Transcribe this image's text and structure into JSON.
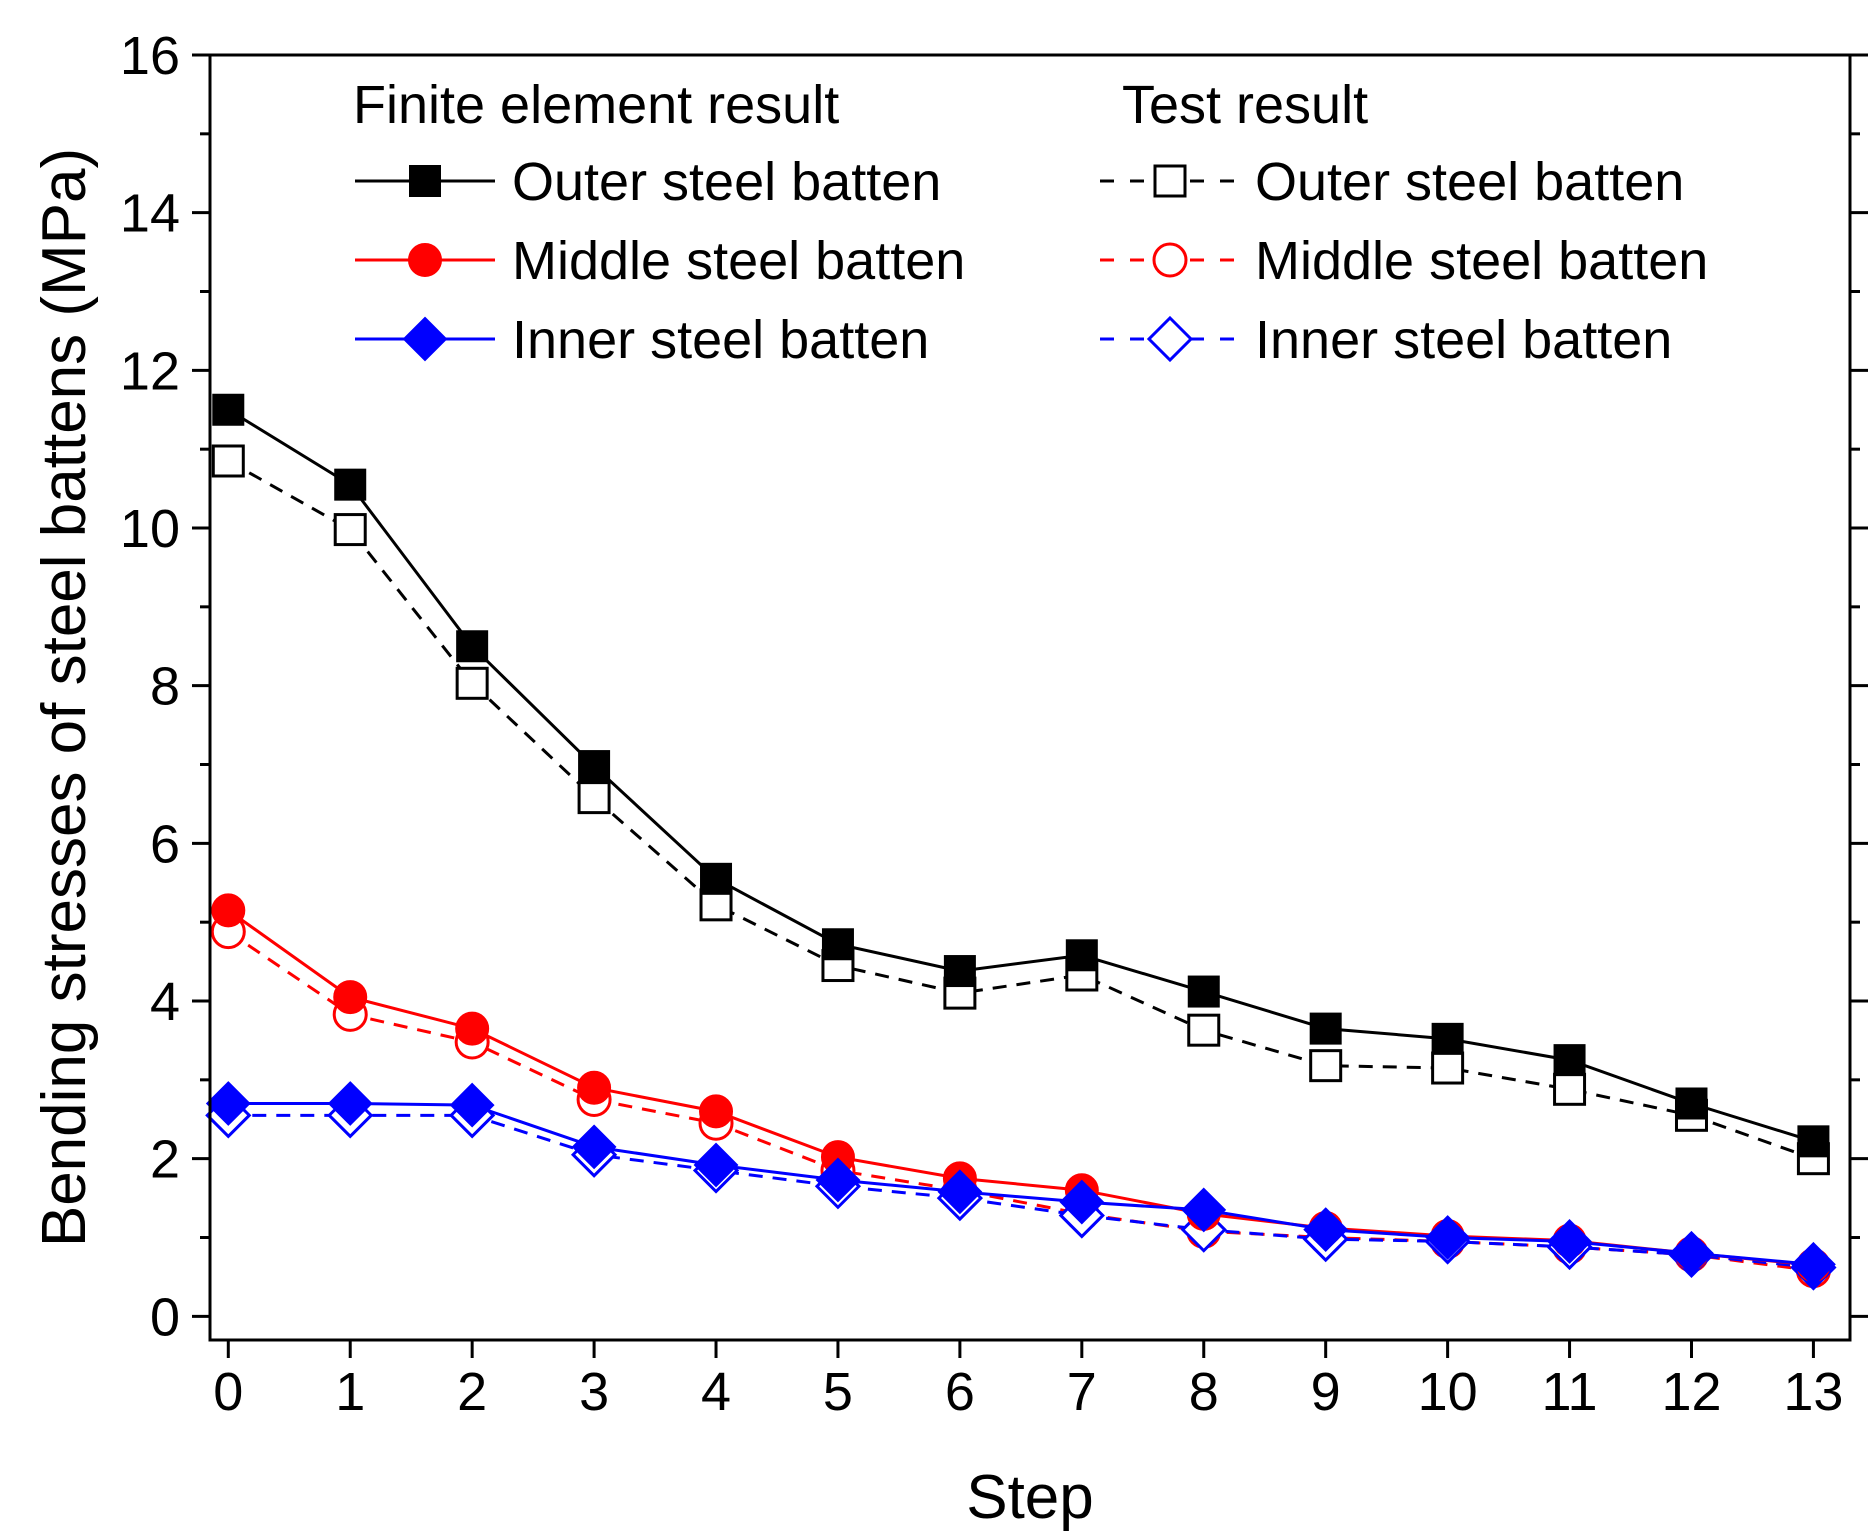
{
  "chart_data": {
    "type": "line",
    "title": "",
    "xlabel": "Step",
    "ylabel": "Bending stresses of steel battens (MPa)",
    "xlim": [
      -0.15,
      13.3
    ],
    "ylim": [
      -0.3,
      16
    ],
    "x_ticks": [
      0,
      1,
      2,
      3,
      4,
      5,
      6,
      7,
      8,
      9,
      10,
      11,
      12,
      13
    ],
    "y_ticks": [
      0,
      2,
      4,
      6,
      8,
      10,
      12,
      14,
      16
    ],
    "grid": false,
    "legend": {
      "position": "top",
      "group_titles": [
        "Finite element result",
        "Test result"
      ]
    },
    "x": [
      0,
      1,
      2,
      3,
      4,
      5,
      6,
      7,
      8,
      9,
      10,
      11,
      12,
      13
    ],
    "series": [
      {
        "name": "Outer steel batten",
        "group": "Finite element result",
        "color": "#000000",
        "marker": "square",
        "filled": true,
        "dash": "solid",
        "values": [
          11.5,
          10.55,
          8.5,
          6.98,
          5.55,
          4.72,
          4.38,
          4.58,
          4.12,
          3.65,
          3.52,
          3.25,
          2.7,
          2.22
        ]
      },
      {
        "name": "Middle steel batten",
        "group": "Finite element result",
        "color": "#ff0000",
        "marker": "circle",
        "filled": true,
        "dash": "solid",
        "values": [
          5.15,
          4.05,
          3.65,
          2.9,
          2.6,
          2.02,
          1.75,
          1.6,
          1.3,
          1.12,
          1.02,
          0.96,
          0.8,
          0.65
        ]
      },
      {
        "name": "Inner steel batten",
        "group": "Finite element result",
        "color": "#0000ff",
        "marker": "diamond",
        "filled": true,
        "dash": "solid",
        "values": [
          2.7,
          2.7,
          2.68,
          2.15,
          1.92,
          1.73,
          1.58,
          1.45,
          1.35,
          1.1,
          1.0,
          0.95,
          0.8,
          0.66
        ]
      },
      {
        "name": "Outer steel batten",
        "group": "Test result",
        "color": "#000000",
        "marker": "square",
        "filled": false,
        "dash": "dashed",
        "values": [
          10.85,
          9.98,
          8.03,
          6.58,
          5.22,
          4.45,
          4.1,
          4.33,
          3.63,
          3.18,
          3.15,
          2.88,
          2.55,
          2.0
        ]
      },
      {
        "name": "Middle steel batten",
        "group": "Test result",
        "color": "#ff0000",
        "marker": "circle",
        "filled": false,
        "dash": "dashed",
        "values": [
          4.88,
          3.83,
          3.48,
          2.75,
          2.45,
          1.85,
          1.6,
          1.3,
          1.08,
          1.0,
          0.95,
          0.88,
          0.78,
          0.58
        ]
      },
      {
        "name": "Inner steel batten",
        "group": "Test result",
        "color": "#0000ff",
        "marker": "diamond",
        "filled": false,
        "dash": "dashed",
        "values": [
          2.55,
          2.55,
          2.55,
          2.05,
          1.85,
          1.65,
          1.5,
          1.28,
          1.1,
          0.98,
          0.95,
          0.88,
          0.78,
          0.62
        ]
      }
    ]
  }
}
